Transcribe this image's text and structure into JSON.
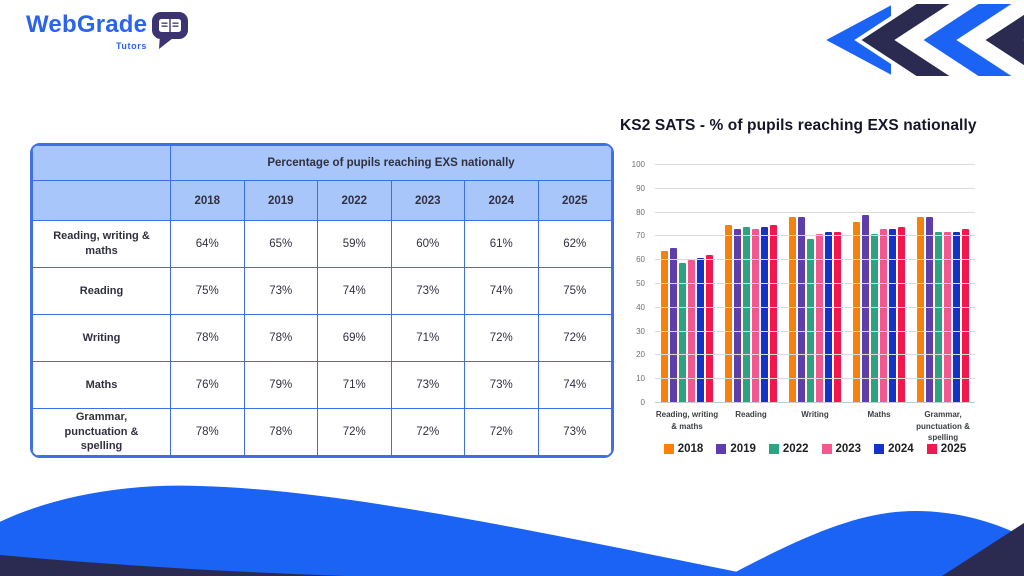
{
  "logo": {
    "brand": "WebGrade",
    "sub": "Tutors"
  },
  "colors": {
    "brand_blue": "#1A63F4",
    "navy": "#2B2A50",
    "table_border": "#3D6FE8",
    "table_header_bg": "#A9C6FA"
  },
  "table": {
    "header": "Percentage of pupils reaching EXS nationally",
    "years": [
      "2018",
      "2019",
      "2022",
      "2023",
      "2024",
      "2025"
    ],
    "rows": [
      {
        "label": "Reading, writing & maths",
        "values": [
          "64%",
          "65%",
          "59%",
          "60%",
          "61%",
          "62%"
        ]
      },
      {
        "label": "Reading",
        "values": [
          "75%",
          "73%",
          "74%",
          "73%",
          "74%",
          "75%"
        ]
      },
      {
        "label": "Writing",
        "values": [
          "78%",
          "78%",
          "69%",
          "71%",
          "72%",
          "72%"
        ]
      },
      {
        "label": "Maths",
        "values": [
          "76%",
          "79%",
          "71%",
          "73%",
          "73%",
          "74%"
        ]
      },
      {
        "label": "Grammar, punctuation & spelling",
        "values": [
          "78%",
          "78%",
          "72%",
          "72%",
          "72%",
          "73%"
        ]
      }
    ]
  },
  "chart_data": {
    "type": "bar",
    "title": "KS2 SATS - % of pupils reaching EXS nationally",
    "categories": [
      "Reading, writing\n& maths",
      "Reading",
      "Writing",
      "Maths",
      "Grammar,\npunctuation &\nspelling"
    ],
    "series": [
      {
        "name": "2018",
        "color": "#F6820C",
        "values": [
          64,
          75,
          78,
          76,
          78
        ]
      },
      {
        "name": "2019",
        "color": "#5E3DAC",
        "values": [
          65,
          73,
          78,
          79,
          78
        ]
      },
      {
        "name": "2022",
        "color": "#2EA384",
        "values": [
          59,
          74,
          69,
          71,
          72
        ]
      },
      {
        "name": "2023",
        "color": "#F4578E",
        "values": [
          60,
          73,
          71,
          73,
          72
        ]
      },
      {
        "name": "2024",
        "color": "#1433C4",
        "values": [
          61,
          74,
          72,
          73,
          72
        ]
      },
      {
        "name": "2025",
        "color": "#F2174F",
        "values": [
          62,
          75,
          72,
          74,
          73
        ]
      }
    ],
    "xlabel": "",
    "ylabel": "",
    "ylim": [
      0,
      100
    ],
    "yticks": [
      0,
      10,
      20,
      30,
      40,
      50,
      60,
      70,
      80,
      90,
      100
    ],
    "grid": true,
    "legend_position": "bottom"
  }
}
